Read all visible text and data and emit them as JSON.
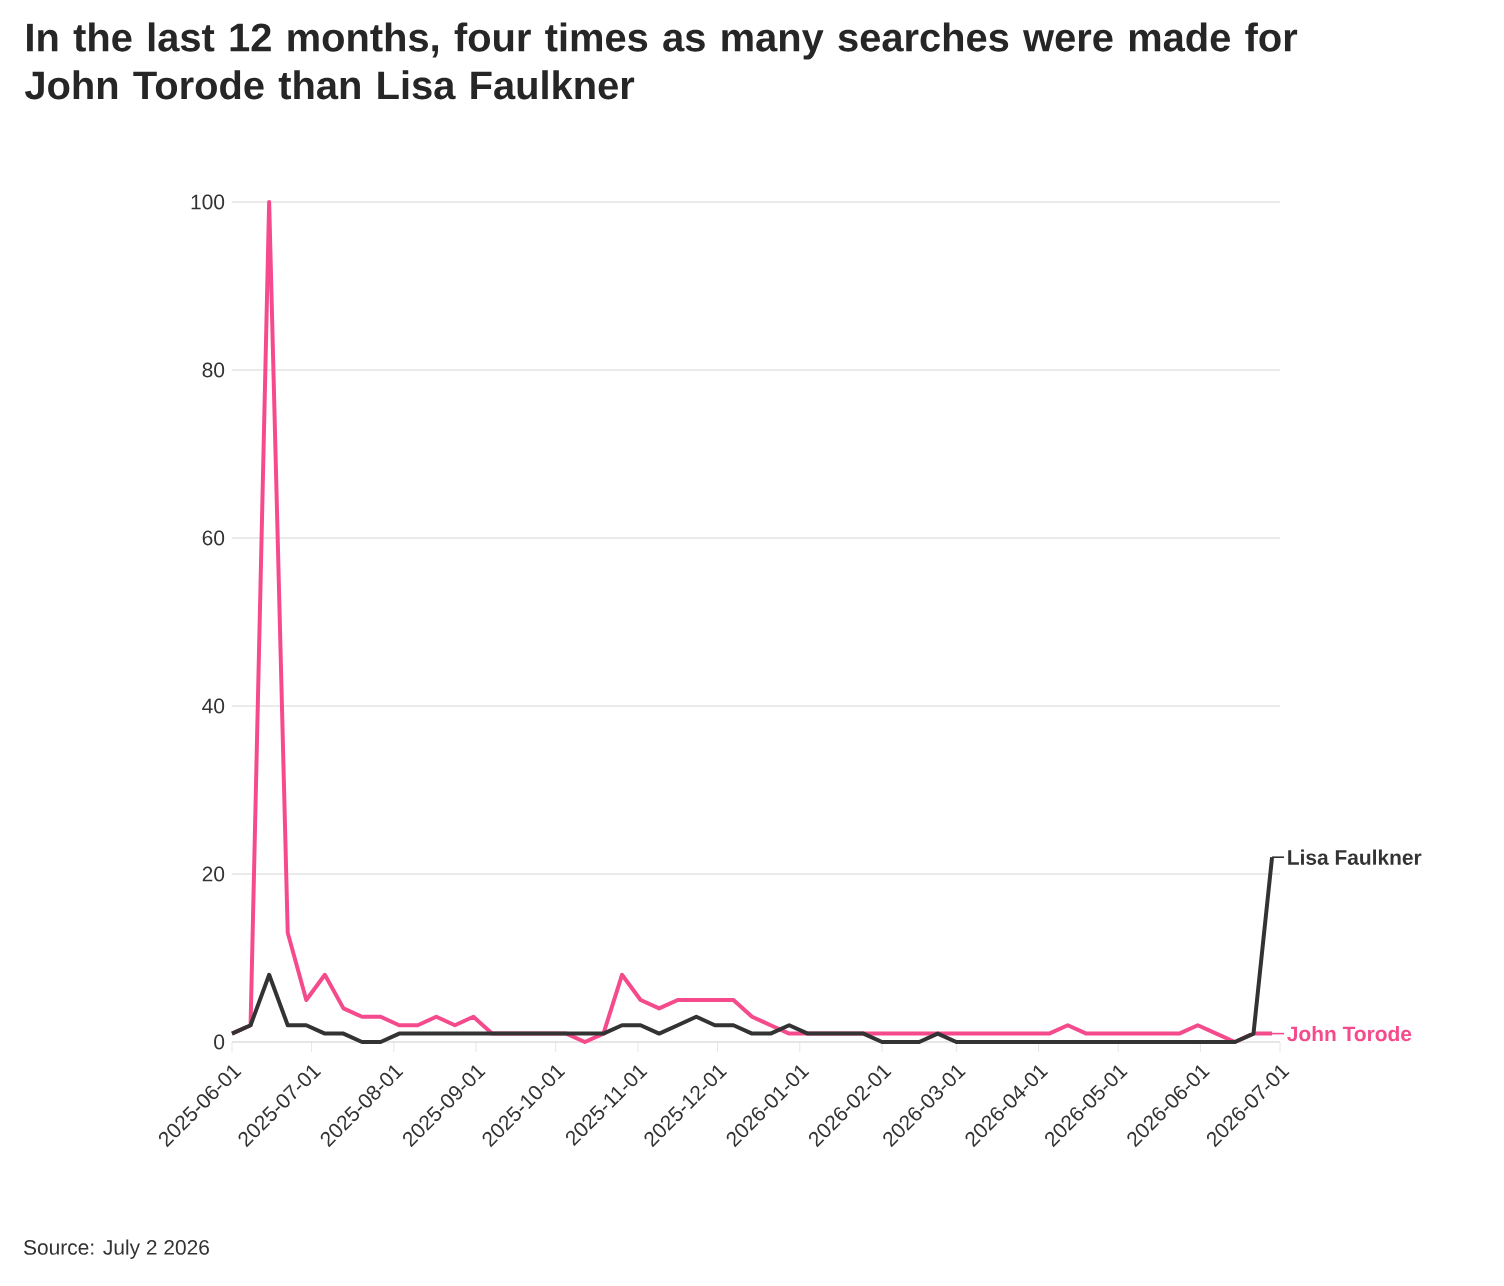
{
  "chart_data": {
    "type": "line",
    "title": "In the last 12 months, four times as many searches were made for John Torode than Lisa Faulkner",
    "annotations": [
      "Source: July 2 2026"
    ],
    "x": [
      "2025-06-01",
      "2025-06-08",
      "2025-06-15",
      "2025-06-22",
      "2025-06-29",
      "2025-07-06",
      "2025-07-13",
      "2025-07-20",
      "2025-07-27",
      "2025-08-03",
      "2025-08-10",
      "2025-08-17",
      "2025-08-24",
      "2025-08-31",
      "2025-09-07",
      "2025-09-14",
      "2025-09-21",
      "2025-09-28",
      "2025-10-05",
      "2025-10-12",
      "2025-10-19",
      "2025-10-26",
      "2025-11-02",
      "2025-11-09",
      "2025-11-16",
      "2025-11-23",
      "2025-11-30",
      "2025-12-07",
      "2025-12-14",
      "2025-12-21",
      "2025-12-28",
      "2026-01-04",
      "2026-01-11",
      "2026-01-18",
      "2026-01-25",
      "2026-02-01",
      "2026-02-08",
      "2026-02-15",
      "2026-02-22",
      "2026-03-01",
      "2026-03-08",
      "2026-03-15",
      "2026-03-22",
      "2026-03-29",
      "2026-04-05",
      "2026-04-12",
      "2026-04-19",
      "2026-04-26",
      "2026-05-03",
      "2026-05-10",
      "2026-05-17",
      "2026-05-24",
      "2026-05-31",
      "2026-06-07",
      "2026-06-14",
      "2026-06-21",
      "2026-06-28"
    ],
    "series": [
      {
        "name": "John Torode",
        "color": "#f54b8c",
        "values": [
          1,
          2,
          100,
          13,
          5,
          8,
          4,
          3,
          3,
          2,
          2,
          3,
          2,
          3,
          1,
          null,
          null,
          null,
          1,
          0,
          1,
          8,
          5,
          4,
          5,
          5,
          5,
          5,
          3,
          2,
          1,
          1,
          null,
          null,
          1,
          1,
          1,
          1,
          1,
          1,
          1,
          1,
          1,
          1,
          1,
          2,
          1,
          1,
          1,
          1,
          1,
          1,
          2,
          1,
          0,
          1,
          1
        ]
      },
      {
        "name": "Lisa Faulkner",
        "color": "#333333",
        "values": [
          1,
          2,
          8,
          2,
          2,
          1,
          1,
          0,
          0,
          1,
          1,
          1,
          1,
          1,
          1,
          1,
          1,
          1,
          1,
          1,
          1,
          2,
          2,
          1,
          2,
          3,
          2,
          2,
          1,
          1,
          2,
          1,
          1,
          1,
          1,
          0,
          0,
          0,
          1,
          0,
          0,
          0,
          0,
          0,
          0,
          0,
          0,
          0,
          0,
          0,
          0,
          0,
          0,
          0,
          0,
          1,
          22
        ]
      }
    ],
    "xlim": [
      "2025-06-01",
      "2026-07-01"
    ],
    "xticks": [
      "2025-06-01",
      "2025-07-01",
      "2025-08-01",
      "2025-09-01",
      "2025-10-01",
      "2025-11-01",
      "2025-12-01",
      "2026-01-01",
      "2026-02-01",
      "2026-03-01",
      "2026-04-01",
      "2026-05-01",
      "2026-06-01",
      "2026-07-01"
    ],
    "ylim": [
      0,
      100
    ],
    "yticks": [
      0,
      20,
      40,
      60,
      80,
      100
    ],
    "grid": "y",
    "legend": "right",
    "marker": "none",
    "line_style": "solid"
  }
}
